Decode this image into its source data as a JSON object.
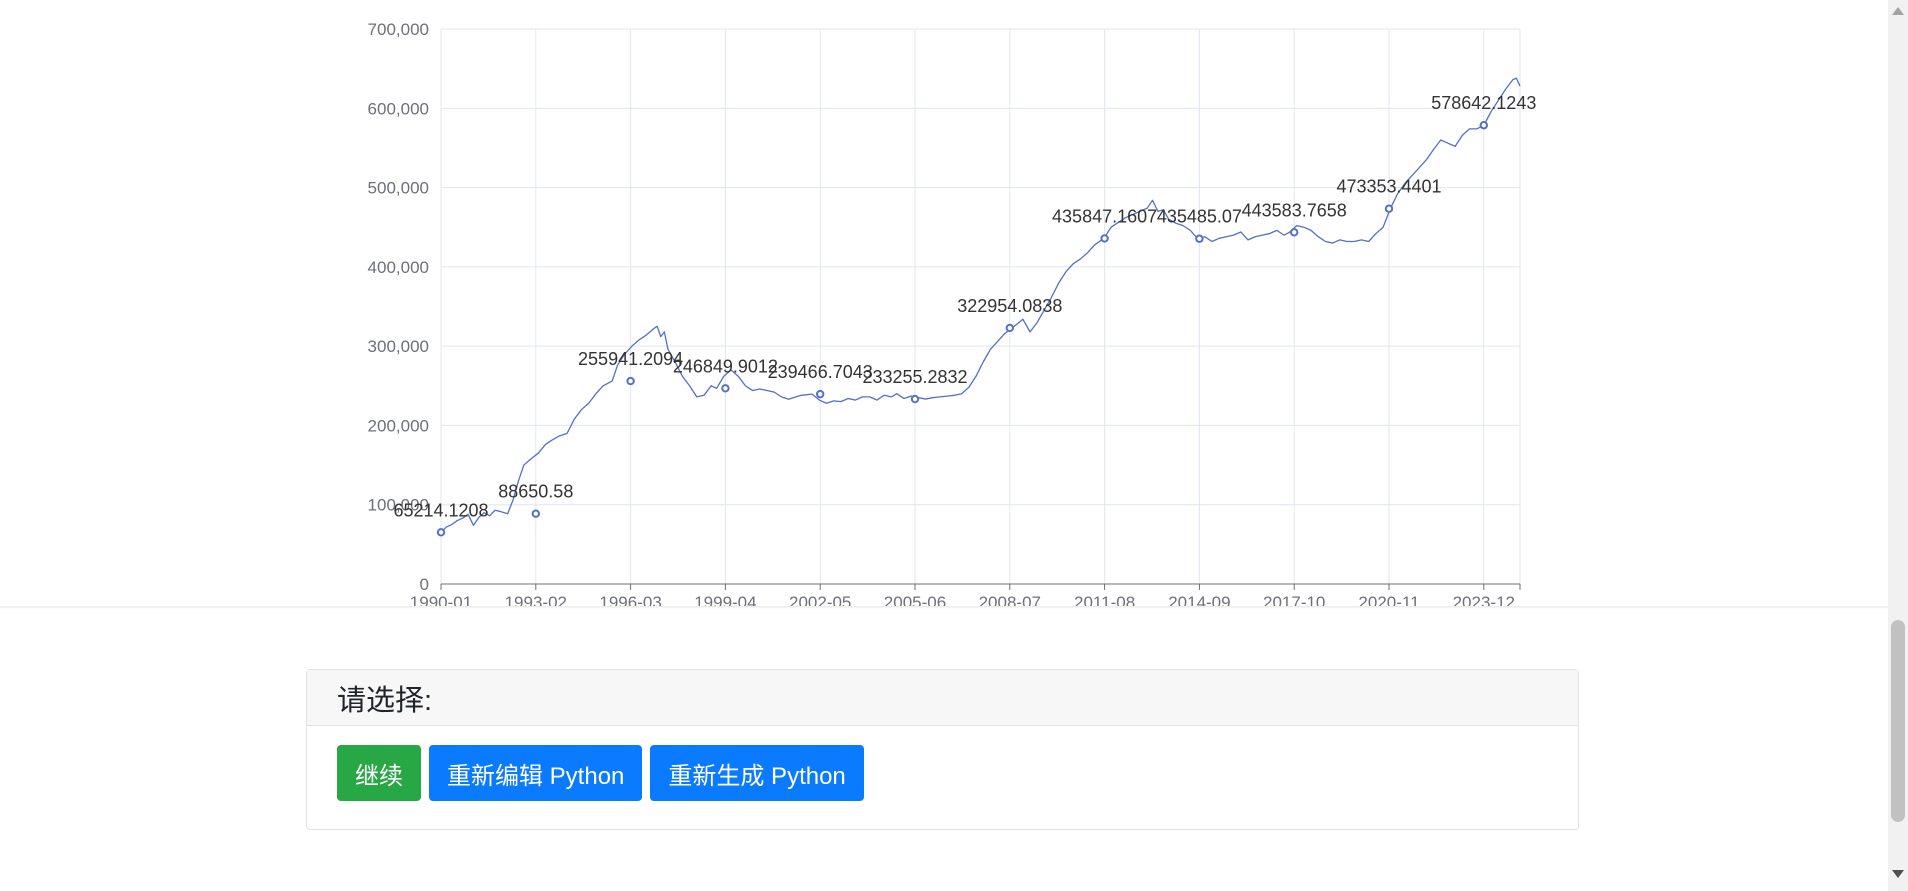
{
  "chart_data": {
    "type": "line",
    "series": [
      {
        "values": [
          [
            0,
            65214.1208
          ],
          [
            3,
            72000
          ],
          [
            6,
            75000
          ],
          [
            9,
            80000
          ],
          [
            12,
            83000
          ],
          [
            15,
            88000
          ],
          [
            18,
            74000
          ],
          [
            21,
            84000
          ],
          [
            24,
            90000
          ],
          [
            27,
            86000
          ],
          [
            30,
            93000
          ],
          [
            32,
            92000
          ],
          [
            37,
            88650.58
          ],
          [
            40,
            106000
          ],
          [
            43,
            130000
          ],
          [
            46,
            150000
          ],
          [
            50,
            158000
          ],
          [
            54,
            165000
          ],
          [
            58,
            176000
          ],
          [
            62,
            182000
          ],
          [
            66,
            187000
          ],
          [
            70,
            190000
          ],
          [
            74,
            208000
          ],
          [
            78,
            220000
          ],
          [
            82,
            228000
          ],
          [
            86,
            240000
          ],
          [
            90,
            250000
          ],
          [
            95,
            255941.2094
          ],
          [
            98,
            276000
          ],
          [
            102,
            290000
          ],
          [
            106,
            300000
          ],
          [
            110,
            308000
          ],
          [
            114,
            314000
          ],
          [
            118,
            322000
          ],
          [
            120,
            325000
          ],
          [
            122,
            312000
          ],
          [
            124,
            318000
          ],
          [
            126,
            296000
          ],
          [
            130,
            280000
          ],
          [
            134,
            262000
          ],
          [
            138,
            250000
          ],
          [
            142,
            236000
          ],
          [
            146,
            238000
          ],
          [
            150,
            250000
          ],
          [
            153,
            246849.9012
          ],
          [
            157,
            262000
          ],
          [
            161,
            270000
          ],
          [
            165,
            262000
          ],
          [
            169,
            250000
          ],
          [
            173,
            244000
          ],
          [
            177,
            246000
          ],
          [
            181,
            244000
          ],
          [
            185,
            242000
          ],
          [
            189,
            236000
          ],
          [
            193,
            233000
          ],
          [
            197,
            236000
          ],
          [
            200,
            238000
          ],
          [
            206,
            239466.7043
          ],
          [
            210,
            232000
          ],
          [
            214,
            228000
          ],
          [
            218,
            231000
          ],
          [
            222,
            230000
          ],
          [
            226,
            234000
          ],
          [
            230,
            232000
          ],
          [
            234,
            236000
          ],
          [
            238,
            236000
          ],
          [
            242,
            232000
          ],
          [
            246,
            238000
          ],
          [
            250,
            236000
          ],
          [
            253,
            240000
          ],
          [
            257,
            234000
          ],
          [
            261,
            237000
          ],
          [
            265,
            235000
          ],
          [
            269,
            233255.2832
          ],
          [
            273,
            235000
          ],
          [
            277,
            236000
          ],
          [
            281,
            237000
          ],
          [
            285,
            238000
          ],
          [
            289,
            240000
          ],
          [
            293,
            248000
          ],
          [
            297,
            262000
          ],
          [
            301,
            280000
          ],
          [
            305,
            296000
          ],
          [
            309,
            306000
          ],
          [
            313,
            316000
          ],
          [
            317,
            322954.0838
          ],
          [
            321,
            330000
          ],
          [
            323,
            334000
          ],
          [
            327,
            318000
          ],
          [
            331,
            330000
          ],
          [
            335,
            346000
          ],
          [
            339,
            362000
          ],
          [
            343,
            380000
          ],
          [
            347,
            394000
          ],
          [
            351,
            404000
          ],
          [
            355,
            410000
          ],
          [
            359,
            418000
          ],
          [
            363,
            428000
          ],
          [
            368,
            435847.16
          ],
          [
            372,
            450000
          ],
          [
            376,
            456000
          ],
          [
            380,
            462000
          ],
          [
            384,
            466000
          ],
          [
            388,
            470000
          ],
          [
            392,
            474000
          ],
          [
            395,
            484000
          ],
          [
            398,
            470000
          ],
          [
            401,
            472000
          ],
          [
            404,
            460000
          ],
          [
            408,
            455000
          ],
          [
            412,
            452000
          ],
          [
            416,
            446000
          ],
          [
            420,
            435485.07
          ],
          [
            424,
            438000
          ],
          [
            428,
            432000
          ],
          [
            432,
            436000
          ],
          [
            436,
            438000
          ],
          [
            440,
            440000
          ],
          [
            444,
            444000
          ],
          [
            448,
            434000
          ],
          [
            452,
            438000
          ],
          [
            456,
            440000
          ],
          [
            460,
            442000
          ],
          [
            464,
            446000
          ],
          [
            468,
            440000
          ],
          [
            471,
            443583.7658
          ],
          [
            475,
            452000
          ],
          [
            479,
            450000
          ],
          [
            483,
            446000
          ],
          [
            487,
            438000
          ],
          [
            491,
            432000
          ],
          [
            495,
            430000
          ],
          [
            499,
            434000
          ],
          [
            503,
            432000
          ],
          [
            507,
            432000
          ],
          [
            511,
            434000
          ],
          [
            515,
            432000
          ],
          [
            519,
            442000
          ],
          [
            523,
            450000
          ],
          [
            527,
            473353.4401
          ],
          [
            531,
            492000
          ],
          [
            535,
            505000
          ],
          [
            539,
            515000
          ],
          [
            543,
            525000
          ],
          [
            547,
            535000
          ],
          [
            551,
            548000
          ],
          [
            555,
            560000
          ],
          [
            559,
            556000
          ],
          [
            563,
            552000
          ],
          [
            567,
            566000
          ],
          [
            571,
            574000
          ],
          [
            575,
            574000
          ],
          [
            579,
            578642.1243
          ],
          [
            583,
            596000
          ],
          [
            587,
            610000
          ],
          [
            591,
            624000
          ],
          [
            595,
            636000
          ],
          [
            597,
            638000
          ],
          [
            599,
            628000
          ]
        ],
        "labeled_points": [
          {
            "label": "65214.1208",
            "x": 0,
            "y": 65214.1208
          },
          {
            "label": "88650.58",
            "x": 37,
            "y": 88650.58
          },
          {
            "label": "255941.2094",
            "x": 74,
            "y": 255941.2094
          },
          {
            "label": "246849.9012",
            "x": 111,
            "y": 246849.9012
          },
          {
            "label": "239466.7043",
            "x": 148,
            "y": 239466.7043
          },
          {
            "label": "233255.2832",
            "x": 185,
            "y": 233255.2832
          },
          {
            "label": "322954.0838",
            "x": 222,
            "y": 322954.0838
          },
          {
            "label": "435847.1607",
            "x": 259,
            "y": 435847.1607
          },
          {
            "label": "435485.07",
            "x": 296,
            "y": 435485.07
          },
          {
            "label": "443583.7658",
            "x": 333,
            "y": 443583.7658
          },
          {
            "label": "473353.4401",
            "x": 370,
            "y": 473353.4401
          },
          {
            "label": "578642.1243",
            "x": 407,
            "y": 578642.1243
          }
        ]
      }
    ],
    "x_tick_labels": [
      "1990-01",
      "1993-02",
      "1996-03",
      "1999-04",
      "2002-05",
      "2005-06",
      "2008-07",
      "2011-08",
      "2014-09",
      "2017-10",
      "2020-11",
      "2023-12"
    ],
    "y_tick_labels": [
      "0",
      "100,000",
      "200,000",
      "300,000",
      "400,000",
      "500,000",
      "600,000",
      "700,000"
    ],
    "ylim": [
      0,
      700000
    ],
    "grid": true,
    "color": "#5470c6"
  },
  "prompt": {
    "title": "请选择:",
    "buttons": {
      "continue": "继续",
      "reedit": "重新编辑 Python",
      "regenerate": "重新生成 Python"
    }
  },
  "colors": {
    "line": "#5470c6",
    "grid": "#e0e6f1",
    "axis": "#6e7079",
    "success": "#28a745",
    "primary": "#0a7bff"
  }
}
